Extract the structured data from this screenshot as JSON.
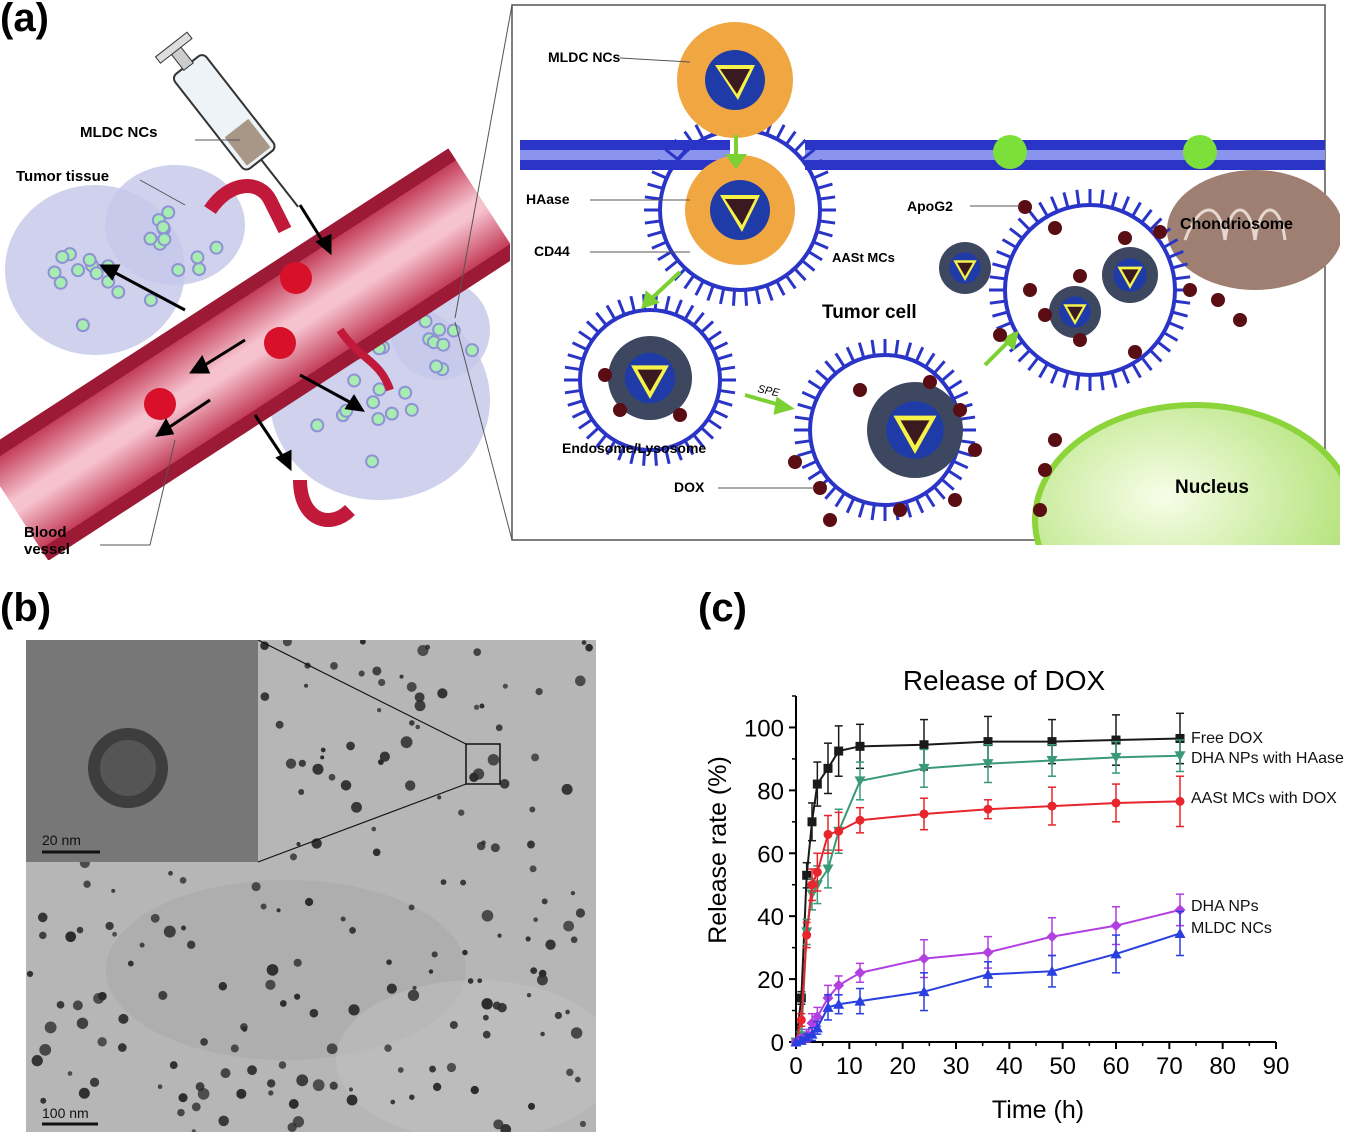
{
  "panel_a": {
    "letter": "(a)",
    "left_labels": {
      "mldc": "MLDC NCs",
      "tumor_tissue": "Tumor tissue",
      "blood": "Blood",
      "vessel": "vessel"
    },
    "right_labels": {
      "mldc": "MLDC NCs",
      "haase": "HAase",
      "cd44": "CD44",
      "apog2": "ApoG2",
      "chondriosome": "Chondriosome",
      "aast": "AASt MCs",
      "tumor_cell": "Tumor cell",
      "endosome": "Endosome/Lysosome",
      "spe": "SPE",
      "dox": "DOX",
      "nucleus": "Nucleus"
    }
  },
  "panel_b": {
    "letter": "(b)",
    "scale_inset": "20 nm",
    "scale_main": "100 nm"
  },
  "panel_c": {
    "letter": "(c)"
  },
  "chart_data": {
    "type": "line",
    "title": "Release of DOX",
    "xlabel": "Time (h)",
    "ylabel": "Release rate (%)",
    "xlim": [
      0,
      90
    ],
    "ylim": [
      0,
      110
    ],
    "xticks": [
      0,
      10,
      20,
      30,
      40,
      50,
      60,
      70,
      80,
      90
    ],
    "yticks": [
      0,
      20,
      40,
      60,
      80,
      100
    ],
    "error_bars": true,
    "series": [
      {
        "name": "Free DOX",
        "color": "#1a1a1a",
        "marker": "square",
        "x": [
          0,
          1,
          2,
          3,
          4,
          6,
          8,
          12,
          24,
          36,
          48,
          60,
          72
        ],
        "y": [
          0,
          14,
          53,
          70,
          82,
          87,
          92.5,
          94,
          94.5,
          95.5,
          95.5,
          96,
          96.5
        ],
        "err": [
          0,
          2,
          4,
          6,
          7,
          8,
          8,
          7,
          8,
          8,
          7,
          8,
          8
        ]
      },
      {
        "name": "DHA NPs with HAase",
        "color": "#3a9a78",
        "marker": "triangle-down",
        "x": [
          0,
          1,
          2,
          3,
          4,
          6,
          8,
          12,
          24,
          36,
          48,
          60,
          72
        ],
        "y": [
          0,
          2,
          35,
          47,
          50,
          55,
          67,
          83,
          87,
          88.5,
          89.5,
          90.5,
          91
        ],
        "err": [
          0,
          2,
          4,
          5,
          6,
          6,
          7,
          6,
          6,
          6,
          5,
          5,
          5
        ]
      },
      {
        "name": "AASt MCs with DOX",
        "color": "#e8242c",
        "marker": "circle",
        "x": [
          0,
          1,
          2,
          3,
          4,
          6,
          8,
          12,
          24,
          36,
          48,
          60,
          72
        ],
        "y": [
          0,
          7,
          34,
          50,
          54,
          66,
          67,
          70.5,
          72.5,
          74,
          75,
          76,
          76.5
        ],
        "err": [
          0,
          2,
          4,
          5,
          6,
          6,
          6,
          4,
          5,
          3,
          6,
          6,
          8
        ]
      },
      {
        "name": "DHA NPs",
        "color": "#b23fe0",
        "marker": "diamond",
        "x": [
          0,
          1,
          2,
          3,
          4,
          6,
          8,
          12,
          24,
          36,
          48,
          60,
          72
        ],
        "y": [
          0,
          1,
          2,
          6,
          8,
          14,
          18,
          22,
          26.5,
          28.5,
          33.5,
          37,
          42
        ],
        "err": [
          0,
          1,
          2,
          3,
          3,
          4,
          3,
          3,
          6,
          5,
          6,
          6,
          5
        ]
      },
      {
        "name": "MLDC NCs",
        "color": "#2a3fe0",
        "marker": "triangle-up",
        "x": [
          0,
          1,
          2,
          3,
          4,
          6,
          8,
          12,
          24,
          36,
          48,
          60,
          72
        ],
        "y": [
          0,
          0.5,
          1.5,
          2.5,
          4.5,
          11,
          12,
          13,
          16,
          21.5,
          22.5,
          28,
          34.5
        ],
        "err": [
          0,
          1,
          1,
          2,
          2,
          4,
          3,
          4,
          6,
          4,
          5,
          6,
          7
        ]
      }
    ]
  }
}
